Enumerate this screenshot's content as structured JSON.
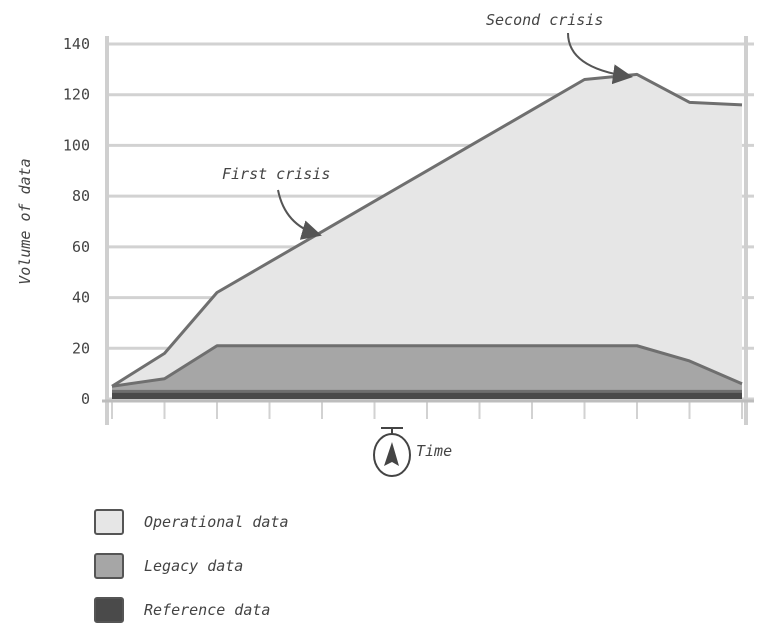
{
  "chart_data": {
    "type": "area",
    "stacked": true,
    "ylabel": "Volume of data",
    "xlabel": "Time",
    "ylim": [
      0,
      140
    ],
    "yticks": [
      0,
      20,
      40,
      60,
      80,
      100,
      120,
      140
    ],
    "x": [
      0,
      1,
      2,
      3,
      4,
      5,
      6,
      7,
      8,
      9,
      10,
      11,
      12
    ],
    "series": [
      {
        "name": "Reference data",
        "color": "#4a4a4a",
        "values": [
          3,
          3,
          3,
          3,
          3,
          3,
          3,
          3,
          3,
          3,
          3,
          3,
          3
        ]
      },
      {
        "name": "Legacy data",
        "color": "#a6a6a6",
        "values": [
          2,
          5,
          18,
          18,
          18,
          18,
          18,
          18,
          18,
          18,
          18,
          12,
          3
        ]
      },
      {
        "name": "Operational data",
        "color": "#e6e6e6",
        "values": [
          0,
          10,
          21,
          33,
          45,
          57,
          69,
          81,
          93,
          105,
          107,
          102,
          110
        ]
      }
    ],
    "grid": true,
    "legend_placement": "bottom-left",
    "annotations": [
      {
        "text": "First crisis",
        "x": 4,
        "y": 68
      },
      {
        "text": "Second crisis",
        "x": 10,
        "y": 128
      }
    ]
  }
}
